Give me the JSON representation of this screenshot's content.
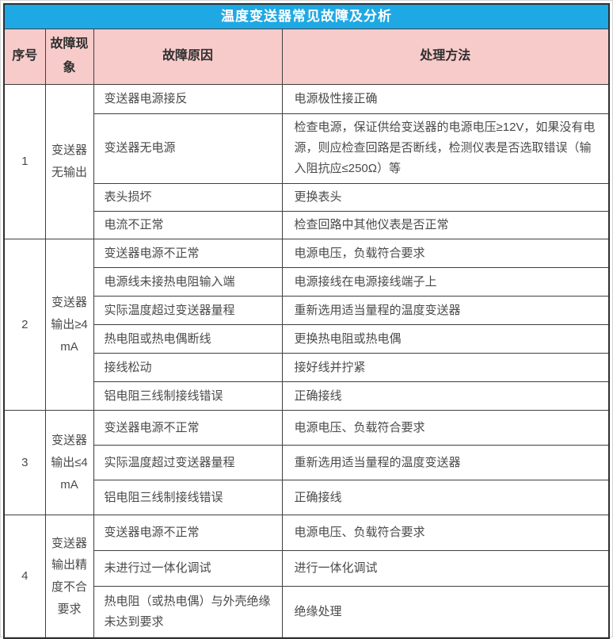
{
  "title": "温度变送器常见故障及分析",
  "columns": {
    "no": "序号",
    "phenomenon": "故障现象",
    "cause": "故障原因",
    "solution": "处理方法"
  },
  "groups": [
    {
      "no": "1",
      "phenomenon": "变送器无输出",
      "rows": [
        {
          "cause": "变送器电源接反",
          "solution": "电源极性接正确"
        },
        {
          "cause": "变送器无电源",
          "solution": "检查电源，保证供给变送器的电源电压≥12V，如果没有电源，则应检查回路是否断线，检测仪表是否选取错误（输入阻抗应≤250Ω）等"
        },
        {
          "cause": "表头损坏",
          "solution": "更换表头"
        },
        {
          "cause": "电流不正常",
          "solution": "检查回路中其他仪表是否正常"
        }
      ]
    },
    {
      "no": "2",
      "phenomenon": "变送器输出≥4mA",
      "rows": [
        {
          "cause": "变送器电源不正常",
          "solution": "电源电压，负载符合要求"
        },
        {
          "cause": "电源线未接热电阻输入端",
          "solution": "电源接线在电源接线端子上"
        },
        {
          "cause": "实际温度超过变送器量程",
          "solution": "重新选用适当量程的温度变送器"
        },
        {
          "cause": "热电阻或热电偶断线",
          "solution": "更换热电阻或热电偶"
        },
        {
          "cause": "接线松动",
          "solution": "接好线并拧紧"
        },
        {
          "cause": "铝电阻三线制接线错误",
          "solution": "正确接线"
        }
      ]
    },
    {
      "no": "3",
      "phenomenon": "变送器输出≤4mA",
      "rows": [
        {
          "cause": "变送器电源不正常",
          "solution": "电源电压、负载符合要求"
        },
        {
          "cause": "实际温度超过变送器量程",
          "solution": "重新选用适当量程的温度变送器"
        },
        {
          "cause": "铝电阻三线制接线错误",
          "solution": "正确接线"
        }
      ]
    },
    {
      "no": "4",
      "phenomenon": "变送器输出精度不合要求",
      "rows": [
        {
          "cause": "变送器电源不正常",
          "solution": "电源电压、负载符合要求"
        },
        {
          "cause": "未进行过一体化调试",
          "solution": "进行一体化调试"
        },
        {
          "cause": "热电阻（或热电偶）与外壳绝缘未达到要求",
          "solution": "绝缘处理"
        }
      ]
    }
  ],
  "colors": {
    "title_bg": "#1fa9e4",
    "header_bg": "#f8cbcb",
    "border": "#3f3f3f",
    "title_text": "#ffffff",
    "body_text": "#4a4a4a"
  }
}
